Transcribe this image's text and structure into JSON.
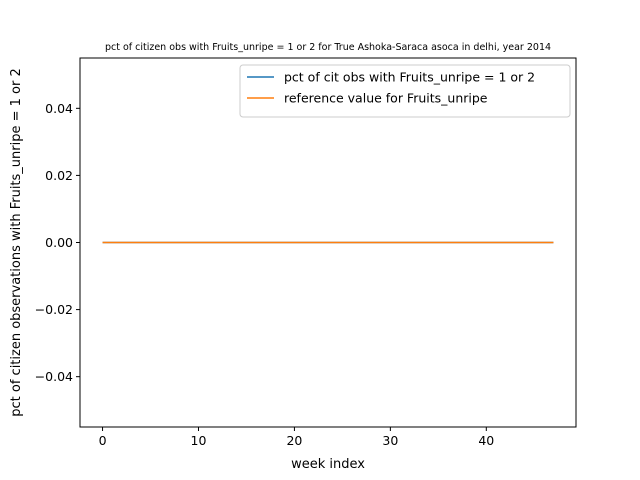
{
  "chart_data": {
    "type": "line",
    "title": "pct of citizen obs with Fruits_unripe = 1 or 2 for True Ashoka-Saraca asoca in delhi, year 2014",
    "xlabel": "week index",
    "ylabel": "pct of citizen observations with Fruits_unripe = 1 or 2",
    "xlim": [
      -2.35,
      49.35
    ],
    "ylim": [
      -0.055,
      0.055
    ],
    "xticks": [
      0,
      10,
      20,
      30,
      40
    ],
    "yticks": [
      -0.04,
      -0.02,
      0.0,
      0.02,
      0.04
    ],
    "xtick_labels": [
      "0",
      "10",
      "20",
      "30",
      "40"
    ],
    "ytick_labels": [
      "−0.04",
      "−0.02",
      "0.00",
      "0.02",
      "0.04"
    ],
    "grid": false,
    "legend_position": "top-right",
    "series": [
      {
        "name": "pct of cit obs with Fruits_unripe = 1 or 2",
        "color": "#1f77b4",
        "x": [
          0,
          47
        ],
        "y": [
          0,
          0
        ]
      },
      {
        "name": "reference value for Fruits_unripe",
        "color": "#ff7f0e",
        "x": [
          0,
          47
        ],
        "y": [
          0,
          0
        ]
      }
    ]
  }
}
